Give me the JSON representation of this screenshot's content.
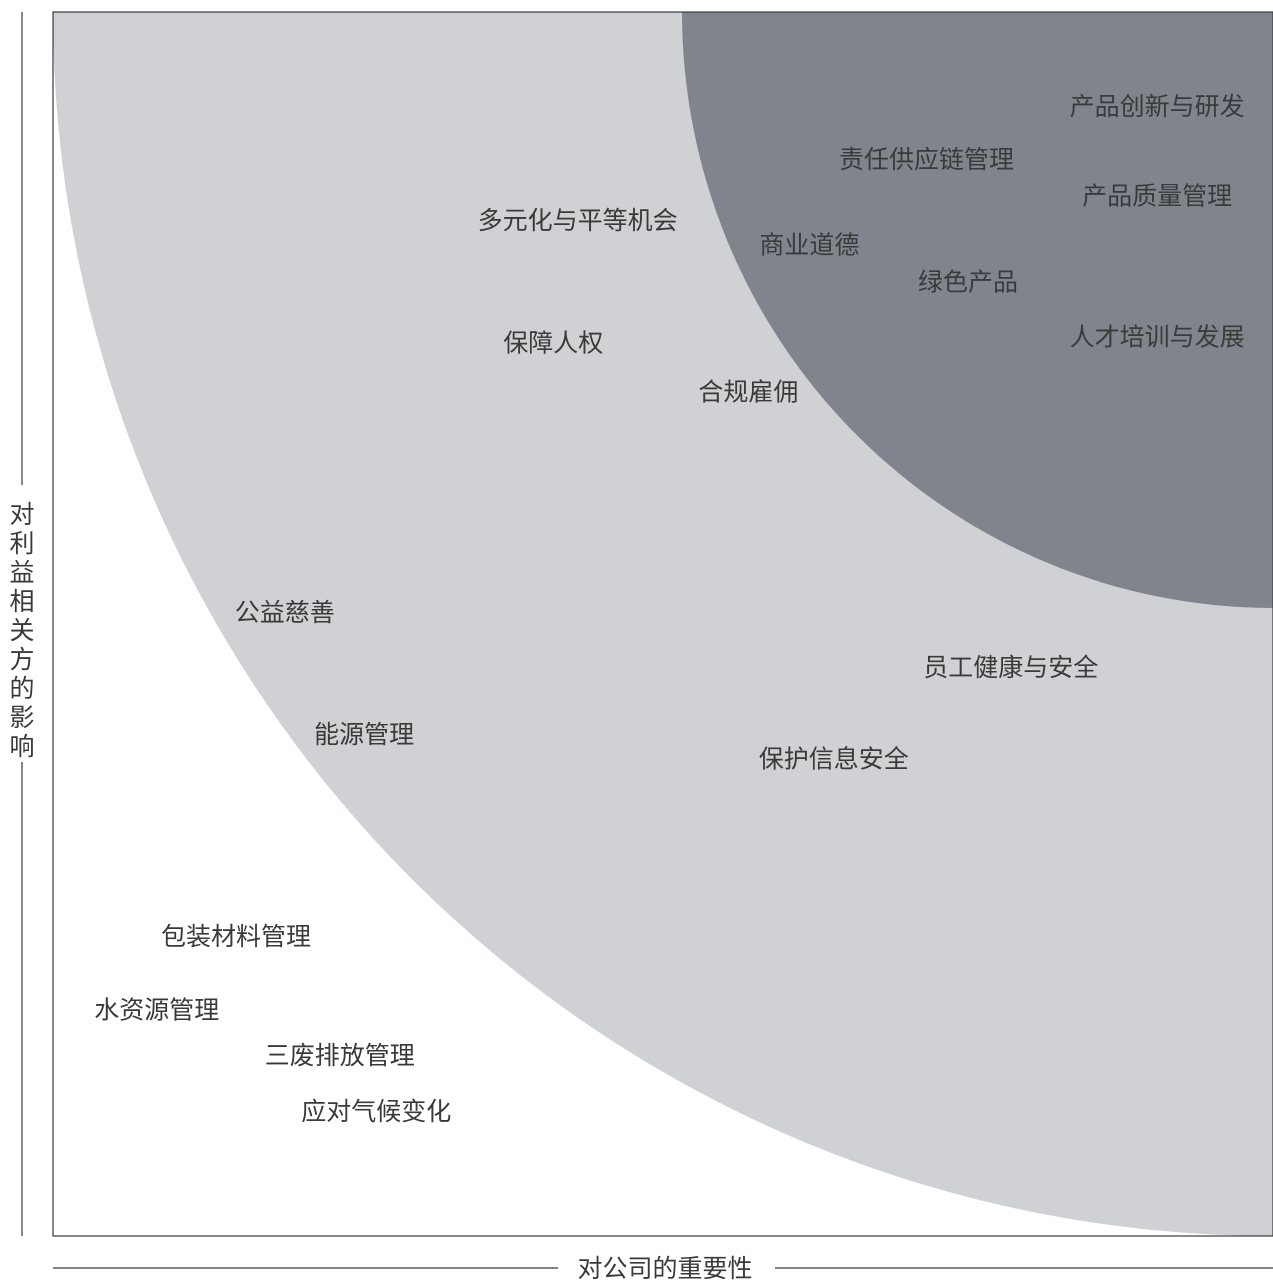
{
  "chart_data": {
    "type": "scatter",
    "xlabel": "对公司的重要性",
    "ylabel": "对利益相关方的影响",
    "xlim": [
      0,
      10
    ],
    "ylim": [
      0,
      10
    ],
    "grid": false,
    "colors": {
      "outer_zone": "#d0d1d5",
      "inner_zone": "#80858d",
      "background": "#ffffff",
      "text": "#3a3a3a"
    },
    "points": [
      {
        "label": "产品创新与研发",
        "x": 9.05,
        "y": 9.23
      },
      {
        "label": "责任供应链管理",
        "x": 7.16,
        "y": 8.8
      },
      {
        "label": "产品质量管理",
        "x": 9.05,
        "y": 8.5
      },
      {
        "label": "多元化与平等机会",
        "x": 4.3,
        "y": 8.3
      },
      {
        "label": "商业道德",
        "x": 6.2,
        "y": 8.1
      },
      {
        "label": "绿色产品",
        "x": 7.5,
        "y": 7.8
      },
      {
        "label": "人才培训与发展",
        "x": 9.05,
        "y": 7.35
      },
      {
        "label": "保障人权",
        "x": 4.1,
        "y": 7.3
      },
      {
        "label": "合规雇佣",
        "x": 5.7,
        "y": 6.9
      },
      {
        "label": "公益慈善",
        "x": 1.9,
        "y": 5.1
      },
      {
        "label": "员工健康与安全",
        "x": 7.85,
        "y": 4.65
      },
      {
        "label": "能源管理",
        "x": 2.55,
        "y": 4.1
      },
      {
        "label": "保护信息安全",
        "x": 6.4,
        "y": 3.9
      },
      {
        "label": "包装材料管理",
        "x": 1.5,
        "y": 2.45
      },
      {
        "label": "水资源管理",
        "x": 0.85,
        "y": 1.85
      },
      {
        "label": "三废排放管理",
        "x": 2.35,
        "y": 1.48
      },
      {
        "label": "应对气候变化",
        "x": 2.65,
        "y": 1.02
      }
    ]
  }
}
